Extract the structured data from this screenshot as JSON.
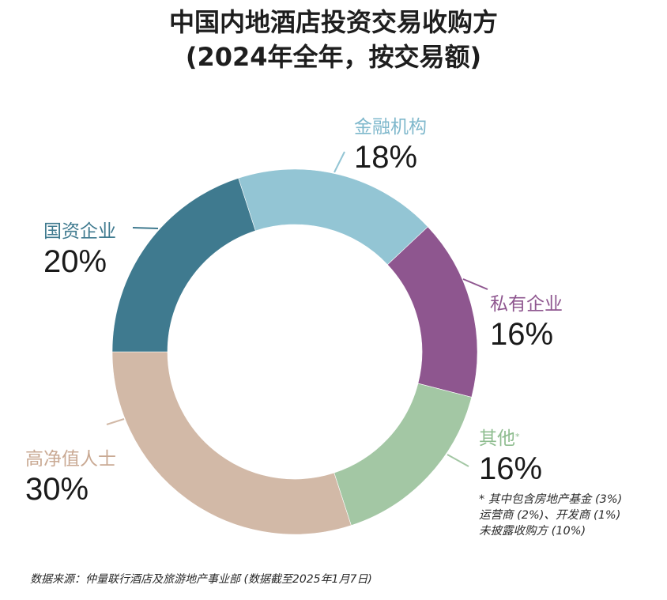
{
  "title": {
    "line1": "中国内地酒店投资交易收购方",
    "line2": "(2024年全年，按交易额)"
  },
  "colors": {
    "state_owned": "#3f7a8f",
    "financial": "#93c5d4",
    "private": "#8e568f",
    "other": "#a3c7a4",
    "hnwi": "#d2b9a7",
    "text": "#1a1a1a"
  },
  "labels": {
    "financial": {
      "name": "金融机构",
      "pct": "18%"
    },
    "state_owned": {
      "name": "国资企业",
      "pct": "20%"
    },
    "private": {
      "name": "私有企业",
      "pct": "16%"
    },
    "other": {
      "name": "其他",
      "marker": "*",
      "pct": "16%"
    },
    "hnwi": {
      "name": "高净值人士",
      "pct": "30%"
    }
  },
  "footnote": {
    "line1": "* 其中包含房地产基金 (3%)",
    "line2": "运营商 (2%)、开发商 (1%)",
    "line3": "未披露收购方 (10%)"
  },
  "source": "数据来源：仲量联行酒店及旅游地产事业部 (数据截至2025年1月7日)",
  "chart_data": {
    "type": "pie",
    "subtype": "donut",
    "title": "中国内地酒店投资交易收购方 (2024年全年，按交易额)",
    "categories": [
      "金融机构",
      "私有企业",
      "其他",
      "高净值人士",
      "国资企业"
    ],
    "values": [
      18,
      16,
      16,
      30,
      20
    ],
    "unit": "%",
    "colors": [
      "#93c5d4",
      "#8e568f",
      "#a3c7a4",
      "#d2b9a7",
      "#3f7a8f"
    ],
    "start_angle_deg_clockwise_from_top": -18,
    "direction": "clockwise",
    "annotations": [
      "* 其中包含房地产基金 (3%)",
      "运营商 (2%)、开发商 (1%)",
      "未披露收购方 (10%)"
    ],
    "legend": "none (direct labels with leader lines)",
    "source": "数据来源：仲量联行酒店及旅游地产事业部 (数据截至2025年1月7日)"
  }
}
